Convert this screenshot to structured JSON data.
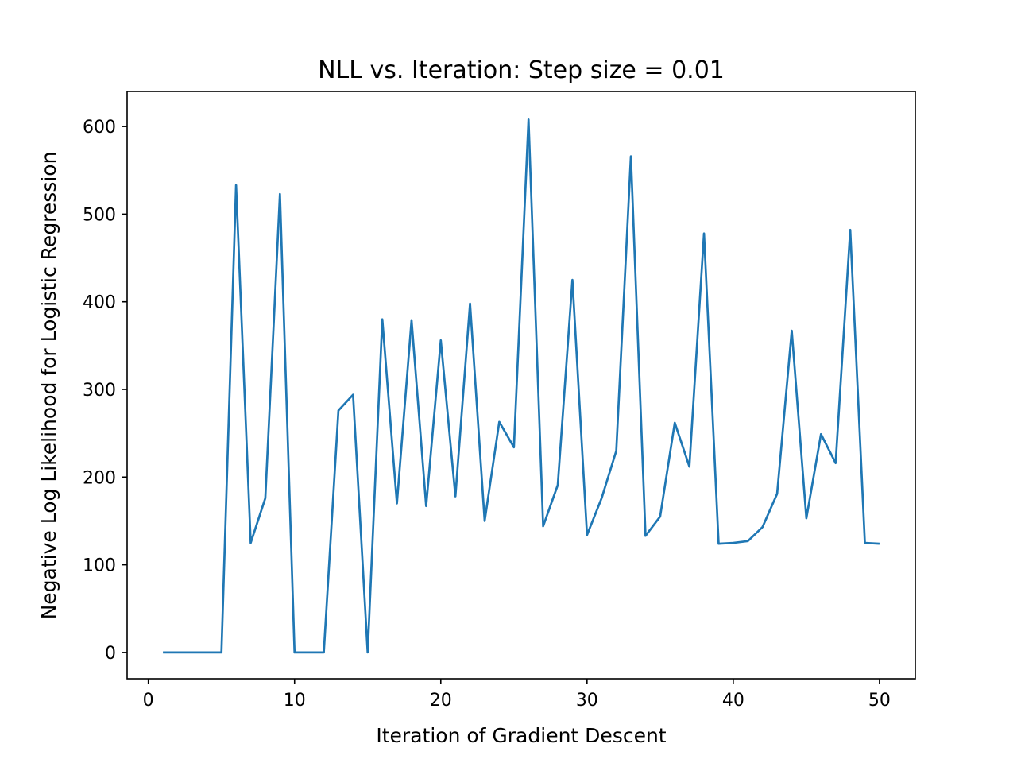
{
  "chart_data": {
    "type": "line",
    "title": "NLL vs. Iteration: Step size = 0.01",
    "xlabel": "Iteration of Gradient Descent",
    "ylabel": "Negative Log Likelihood for Logistic Regression",
    "xlim": [
      -1.45,
      52.45
    ],
    "ylim": [
      -30,
      640
    ],
    "xticks": [
      0,
      10,
      20,
      30,
      40,
      50
    ],
    "yticks": [
      0,
      100,
      200,
      300,
      400,
      500,
      600
    ],
    "grid": false,
    "series": [
      {
        "color": "#1f77b4",
        "x": [
          1,
          2,
          3,
          4,
          5,
          6,
          7,
          8,
          9,
          10,
          11,
          12,
          13,
          14,
          15,
          16,
          17,
          18,
          19,
          20,
          21,
          22,
          23,
          24,
          25,
          26,
          27,
          28,
          29,
          30,
          31,
          32,
          33,
          34,
          35,
          36,
          37,
          38,
          39,
          40,
          41,
          42,
          43,
          44,
          45,
          46,
          47,
          48,
          49,
          50
        ],
        "y": [
          0,
          0,
          0,
          0,
          0,
          533,
          125,
          176,
          523,
          0,
          0,
          0,
          276,
          294,
          0,
          380,
          170,
          379,
          167,
          356,
          178,
          398,
          150,
          263,
          234,
          608,
          144,
          191,
          425,
          134,
          176,
          230,
          566,
          133,
          155,
          262,
          212,
          478,
          124,
          125,
          127,
          143,
          181,
          367,
          153,
          249,
          216,
          482,
          125,
          124
        ]
      }
    ]
  }
}
